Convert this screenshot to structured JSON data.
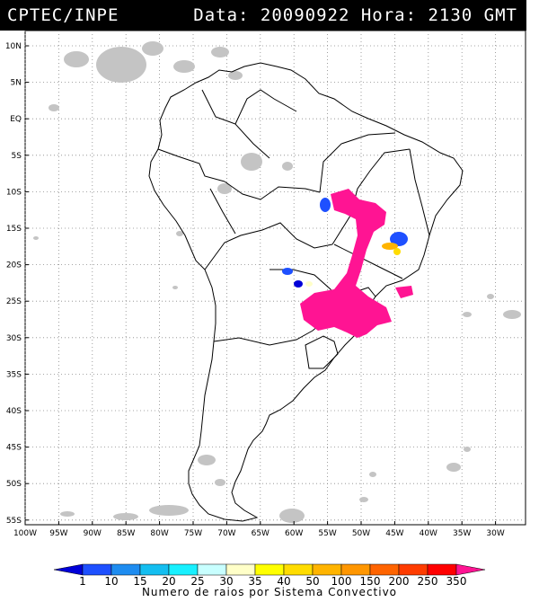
{
  "header": {
    "source": "CPTEC/INPE",
    "datetime": "Data: 20090922 Hora: 2130 GMT"
  },
  "map": {
    "lat_labels": [
      "10N",
      "5N",
      "EQ",
      "5S",
      "10S",
      "15S",
      "20S",
      "25S",
      "30S",
      "35S",
      "40S",
      "45S",
      "50S",
      "55S"
    ],
    "lon_labels": [
      "100W",
      "95W",
      "90W",
      "85W",
      "80W",
      "75W",
      "70W",
      "65W",
      "60W",
      "55W",
      "50W",
      "45W",
      "40W",
      "35W",
      "30W"
    ],
    "grid": "dotted"
  },
  "legend": {
    "title": "Numero de raios por Sistema Convectivo",
    "labels": [
      "1",
      "10",
      "15",
      "20",
      "25",
      "30",
      "35",
      "40",
      "50",
      "100",
      "150",
      "200",
      "250",
      "350"
    ],
    "colors": [
      "#0000d8",
      "#1e50ff",
      "#1e8cf0",
      "#14bef0",
      "#18f0ff",
      "#c8ffff",
      "#ffffc8",
      "#ffff00",
      "#ffdc00",
      "#ffb400",
      "#ff9600",
      "#ff6400",
      "#ff3c00",
      "#ff0000",
      "#ff1493"
    ]
  }
}
